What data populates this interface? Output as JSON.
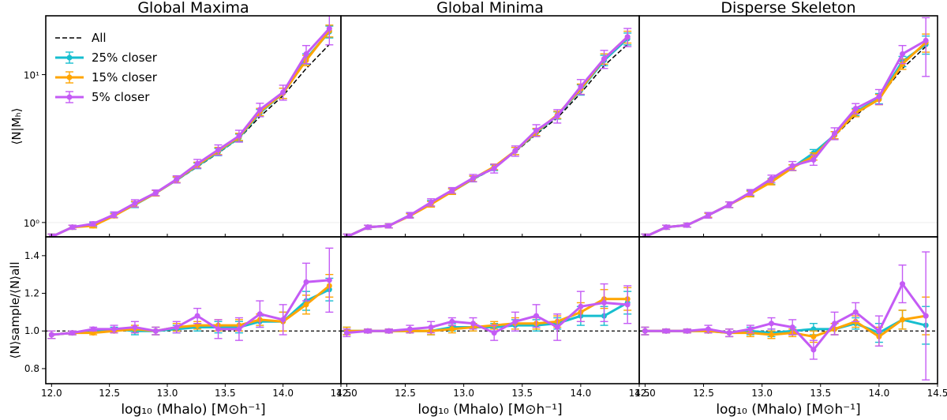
{
  "chart_data": {
    "type": "line",
    "panel_titles": [
      "Global Maxima",
      "Global Minima",
      "Disperse Skeleton"
    ],
    "ylabel_top": "⟨N|Mₕ⟩",
    "ylabel_bottom": "⟨N⟩sample/⟨N⟩all",
    "xlabel": "log₁₀ (Mhalo) [M⊙h⁻¹]",
    "xlim": [
      11.95,
      14.5
    ],
    "ylim_top": [
      0.8,
      25
    ],
    "ylim_bottom": [
      0.72,
      1.5
    ],
    "x_ticks": [
      12.0,
      12.5,
      13.0,
      13.5,
      14.0,
      14.5
    ],
    "x_tick_labels": [
      "12.0",
      "12.5",
      "13.0",
      "13.5",
      "14.0",
      "14.5"
    ],
    "top_tick_labels": [
      "10⁰",
      "10¹"
    ],
    "bottom_tick_labels": [
      "0.8",
      "1.0",
      "1.2",
      "1.4"
    ],
    "legend": [
      "All",
      "25% closer",
      "15% closer",
      "5% closer"
    ],
    "colors": {
      "all": "#000000",
      "p25": "#17becf",
      "p15": "#ffa500",
      "p5": "#c45bf5"
    },
    "x": [
      12.0,
      12.18,
      12.36,
      12.54,
      12.72,
      12.9,
      13.08,
      13.26,
      13.44,
      13.62,
      13.8,
      14.0,
      14.2,
      14.4
    ],
    "panels": [
      {
        "all": [
          0.8,
          0.93,
          0.97,
          1.12,
          1.32,
          1.58,
          1.92,
          2.38,
          2.95,
          3.7,
          5.2,
          7.2,
          11.0,
          16.0
        ],
        "p25": [
          0.8,
          0.93,
          0.97,
          1.12,
          1.32,
          1.58,
          1.94,
          2.42,
          3.0,
          3.75,
          5.5,
          7.5,
          12.8,
          19.5
        ],
        "p15": [
          0.8,
          0.93,
          0.95,
          1.11,
          1.33,
          1.58,
          1.95,
          2.45,
          3.05,
          3.8,
          5.6,
          7.5,
          12.5,
          19.8
        ],
        "p5": [
          0.8,
          0.93,
          0.98,
          1.13,
          1.35,
          1.59,
          1.96,
          2.5,
          3.1,
          3.85,
          5.8,
          7.6,
          13.8,
          20.5
        ],
        "r25": [
          0.98,
          0.99,
          1.0,
          1.01,
          1.0,
          1.0,
          1.01,
          1.02,
          1.02,
          1.02,
          1.05,
          1.05,
          1.16,
          1.22
        ],
        "r15": [
          0.98,
          0.99,
          0.99,
          1.0,
          1.01,
          1.0,
          1.02,
          1.03,
          1.03,
          1.03,
          1.06,
          1.05,
          1.14,
          1.24
        ],
        "r5": [
          0.98,
          0.99,
          1.01,
          1.01,
          1.02,
          1.0,
          1.02,
          1.08,
          1.01,
          1.01,
          1.09,
          1.06,
          1.26,
          1.27
        ],
        "e25": [
          0.02,
          0.01,
          0.01,
          0.01,
          0.02,
          0.02,
          0.02,
          0.02,
          0.03,
          0.03,
          0.03,
          0.05,
          0.05,
          0.06
        ],
        "e5": [
          0.02,
          0.01,
          0.01,
          0.02,
          0.03,
          0.02,
          0.03,
          0.04,
          0.05,
          0.06,
          0.07,
          0.08,
          0.1,
          0.17
        ]
      },
      {
        "all": [
          0.8,
          0.93,
          0.95,
          1.12,
          1.35,
          1.62,
          1.95,
          2.32,
          3.0,
          3.95,
          5.1,
          7.5,
          11.5,
          16.0
        ],
        "p25": [
          0.8,
          0.93,
          0.95,
          1.12,
          1.35,
          1.62,
          1.97,
          2.35,
          3.05,
          4.05,
          5.3,
          7.9,
          12.5,
          17.5
        ],
        "p15": [
          0.8,
          0.93,
          0.95,
          1.11,
          1.33,
          1.62,
          1.98,
          2.38,
          3.05,
          4.1,
          5.35,
          8.0,
          12.8,
          18.0
        ],
        "p5": [
          0.8,
          0.93,
          0.95,
          1.12,
          1.37,
          1.65,
          2.0,
          2.32,
          3.05,
          4.2,
          5.25,
          8.3,
          12.8,
          18.0
        ],
        "r25": [
          1.0,
          1.0,
          1.0,
          1.0,
          1.0,
          1.02,
          1.02,
          1.02,
          1.03,
          1.03,
          1.04,
          1.08,
          1.08,
          1.15
        ],
        "r15": [
          1.0,
          1.0,
          1.0,
          1.0,
          1.0,
          1.01,
          1.02,
          1.03,
          1.04,
          1.04,
          1.05,
          1.1,
          1.17,
          1.17
        ],
        "r5": [
          0.99,
          1.0,
          1.0,
          1.01,
          1.02,
          1.05,
          1.04,
          0.99,
          1.05,
          1.08,
          1.02,
          1.13,
          1.15,
          1.14
        ],
        "e25": [
          0.02,
          0.01,
          0.01,
          0.01,
          0.02,
          0.02,
          0.02,
          0.02,
          0.03,
          0.03,
          0.03,
          0.05,
          0.05,
          0.06
        ],
        "e5": [
          0.02,
          0.01,
          0.01,
          0.02,
          0.03,
          0.02,
          0.03,
          0.04,
          0.05,
          0.06,
          0.07,
          0.08,
          0.1,
          0.1
        ]
      },
      {
        "all": [
          0.8,
          0.93,
          0.96,
          1.12,
          1.32,
          1.58,
          1.92,
          2.38,
          2.9,
          3.85,
          5.3,
          7.0,
          11.0,
          15.5
        ],
        "p25": [
          0.8,
          0.93,
          0.96,
          1.12,
          1.32,
          1.58,
          1.9,
          2.35,
          2.95,
          3.9,
          5.6,
          6.9,
          12.3,
          16.0
        ],
        "p15": [
          0.8,
          0.93,
          0.96,
          1.12,
          1.32,
          1.56,
          1.88,
          2.35,
          2.8,
          3.9,
          5.5,
          6.8,
          11.8,
          16.5
        ],
        "p5": [
          0.8,
          0.93,
          0.96,
          1.12,
          1.32,
          1.6,
          1.98,
          2.42,
          2.65,
          4.0,
          5.9,
          7.1,
          13.8,
          17.0
        ],
        "r25": [
          1.0,
          1.0,
          1.0,
          1.0,
          0.99,
          1.0,
          0.99,
          1.0,
          1.01,
          1.01,
          1.04,
          0.99,
          1.06,
          1.03
        ],
        "r15": [
          1.0,
          1.0,
          1.0,
          1.0,
          0.99,
          0.99,
          0.98,
          0.99,
          0.97,
          1.01,
          1.05,
          0.97,
          1.06,
          1.08
        ],
        "r5": [
          1.0,
          1.0,
          1.0,
          1.01,
          0.99,
          1.01,
          1.04,
          1.02,
          0.9,
          1.04,
          1.1,
          1.0,
          1.25,
          1.08
        ],
        "e25": [
          0.02,
          0.01,
          0.01,
          0.01,
          0.02,
          0.02,
          0.02,
          0.02,
          0.03,
          0.03,
          0.03,
          0.05,
          0.05,
          0.1
        ],
        "e5": [
          0.02,
          0.01,
          0.01,
          0.02,
          0.02,
          0.02,
          0.03,
          0.04,
          0.05,
          0.06,
          0.05,
          0.08,
          0.1,
          0.34
        ]
      }
    ]
  }
}
